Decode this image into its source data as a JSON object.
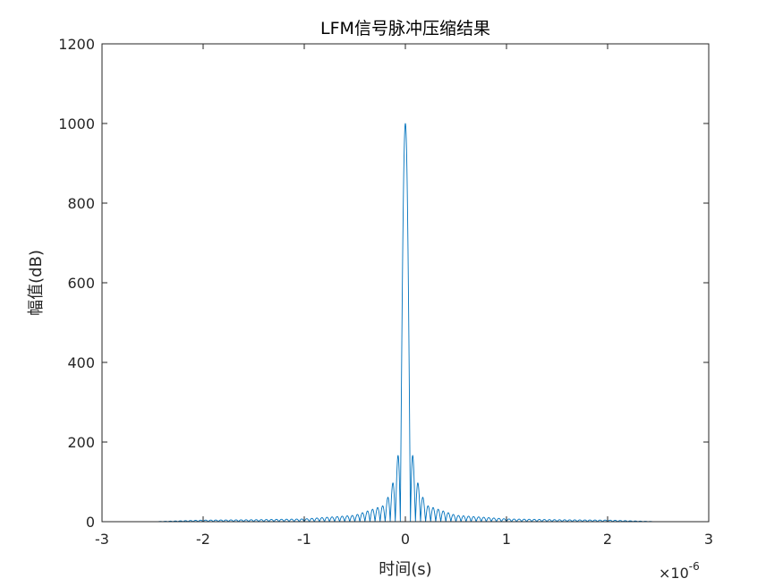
{
  "chart_data": {
    "type": "line",
    "title": "LFM信号脉冲压缩结果",
    "xlabel": "时间(s)",
    "ylabel": "幅值(dB)",
    "x_exponent_label": {
      "base": "×10",
      "exponent": "-6"
    },
    "xlim": [
      -3e-06,
      3e-06
    ],
    "ylim": [
      0,
      1200
    ],
    "x_ticks": [
      -3e-06,
      -2e-06,
      -1e-06,
      0,
      1e-06,
      2e-06,
      3e-06
    ],
    "x_tick_labels": [
      "-3",
      "-2",
      "-1",
      "0",
      "1",
      "2",
      "3"
    ],
    "y_ticks": [
      0,
      200,
      400,
      600,
      800,
      1000,
      1200
    ],
    "y_tick_labels": [
      "0",
      "200",
      "400",
      "600",
      "800",
      "1000",
      "1200"
    ],
    "grid": false,
    "line_color": "#0072BD",
    "series": [
      {
        "signal": {
          "type": "sinc_compressed_pulse",
          "peak": 1000,
          "support": [
            -2.5e-06,
            2.5e-06
          ],
          "sidelobe_period": 5e-08
        },
        "x": [
          -2.5e-06,
          -2e-06,
          -1.5e-06,
          -1e-06,
          -5e-07,
          -2e-07,
          -1e-07,
          -5e-08,
          0,
          5e-08,
          1e-07,
          2e-07,
          5e-07,
          1e-06,
          1.5e-06,
          2e-06,
          2.5e-06
        ],
        "y": [
          0,
          4,
          5,
          7,
          16,
          42,
          115,
          212,
          1000,
          212,
          115,
          42,
          16,
          7,
          5,
          4,
          0
        ]
      }
    ]
  }
}
